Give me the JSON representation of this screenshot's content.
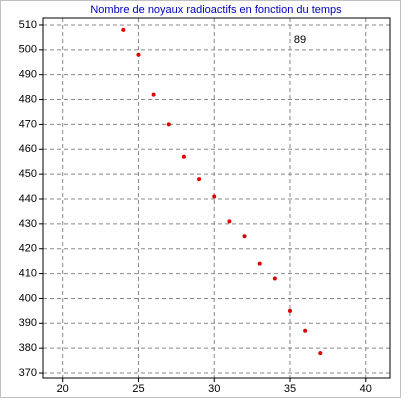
{
  "chart_data": {
    "type": "scatter",
    "title": "Nombre de noyaux radioactifs en fonction du temps",
    "annotation": "89",
    "x": [
      24,
      25,
      26,
      27,
      28,
      29,
      30,
      31,
      32,
      33,
      34,
      35,
      36,
      37
    ],
    "series": [
      {
        "color": "#e00000",
        "values": [
          508,
          498,
          482,
          470,
          457,
          448,
          441,
          431,
          425,
          414,
          408,
          395,
          387,
          378
        ]
      }
    ],
    "xlim": [
      18.7,
      41.6
    ],
    "ylim": [
      368,
      512.8
    ],
    "xticks": [
      20,
      25,
      30,
      35,
      40
    ],
    "yticks": [
      370,
      380,
      390,
      400,
      410,
      420,
      430,
      440,
      450,
      460,
      470,
      480,
      490,
      500,
      510
    ],
    "grid": true
  }
}
